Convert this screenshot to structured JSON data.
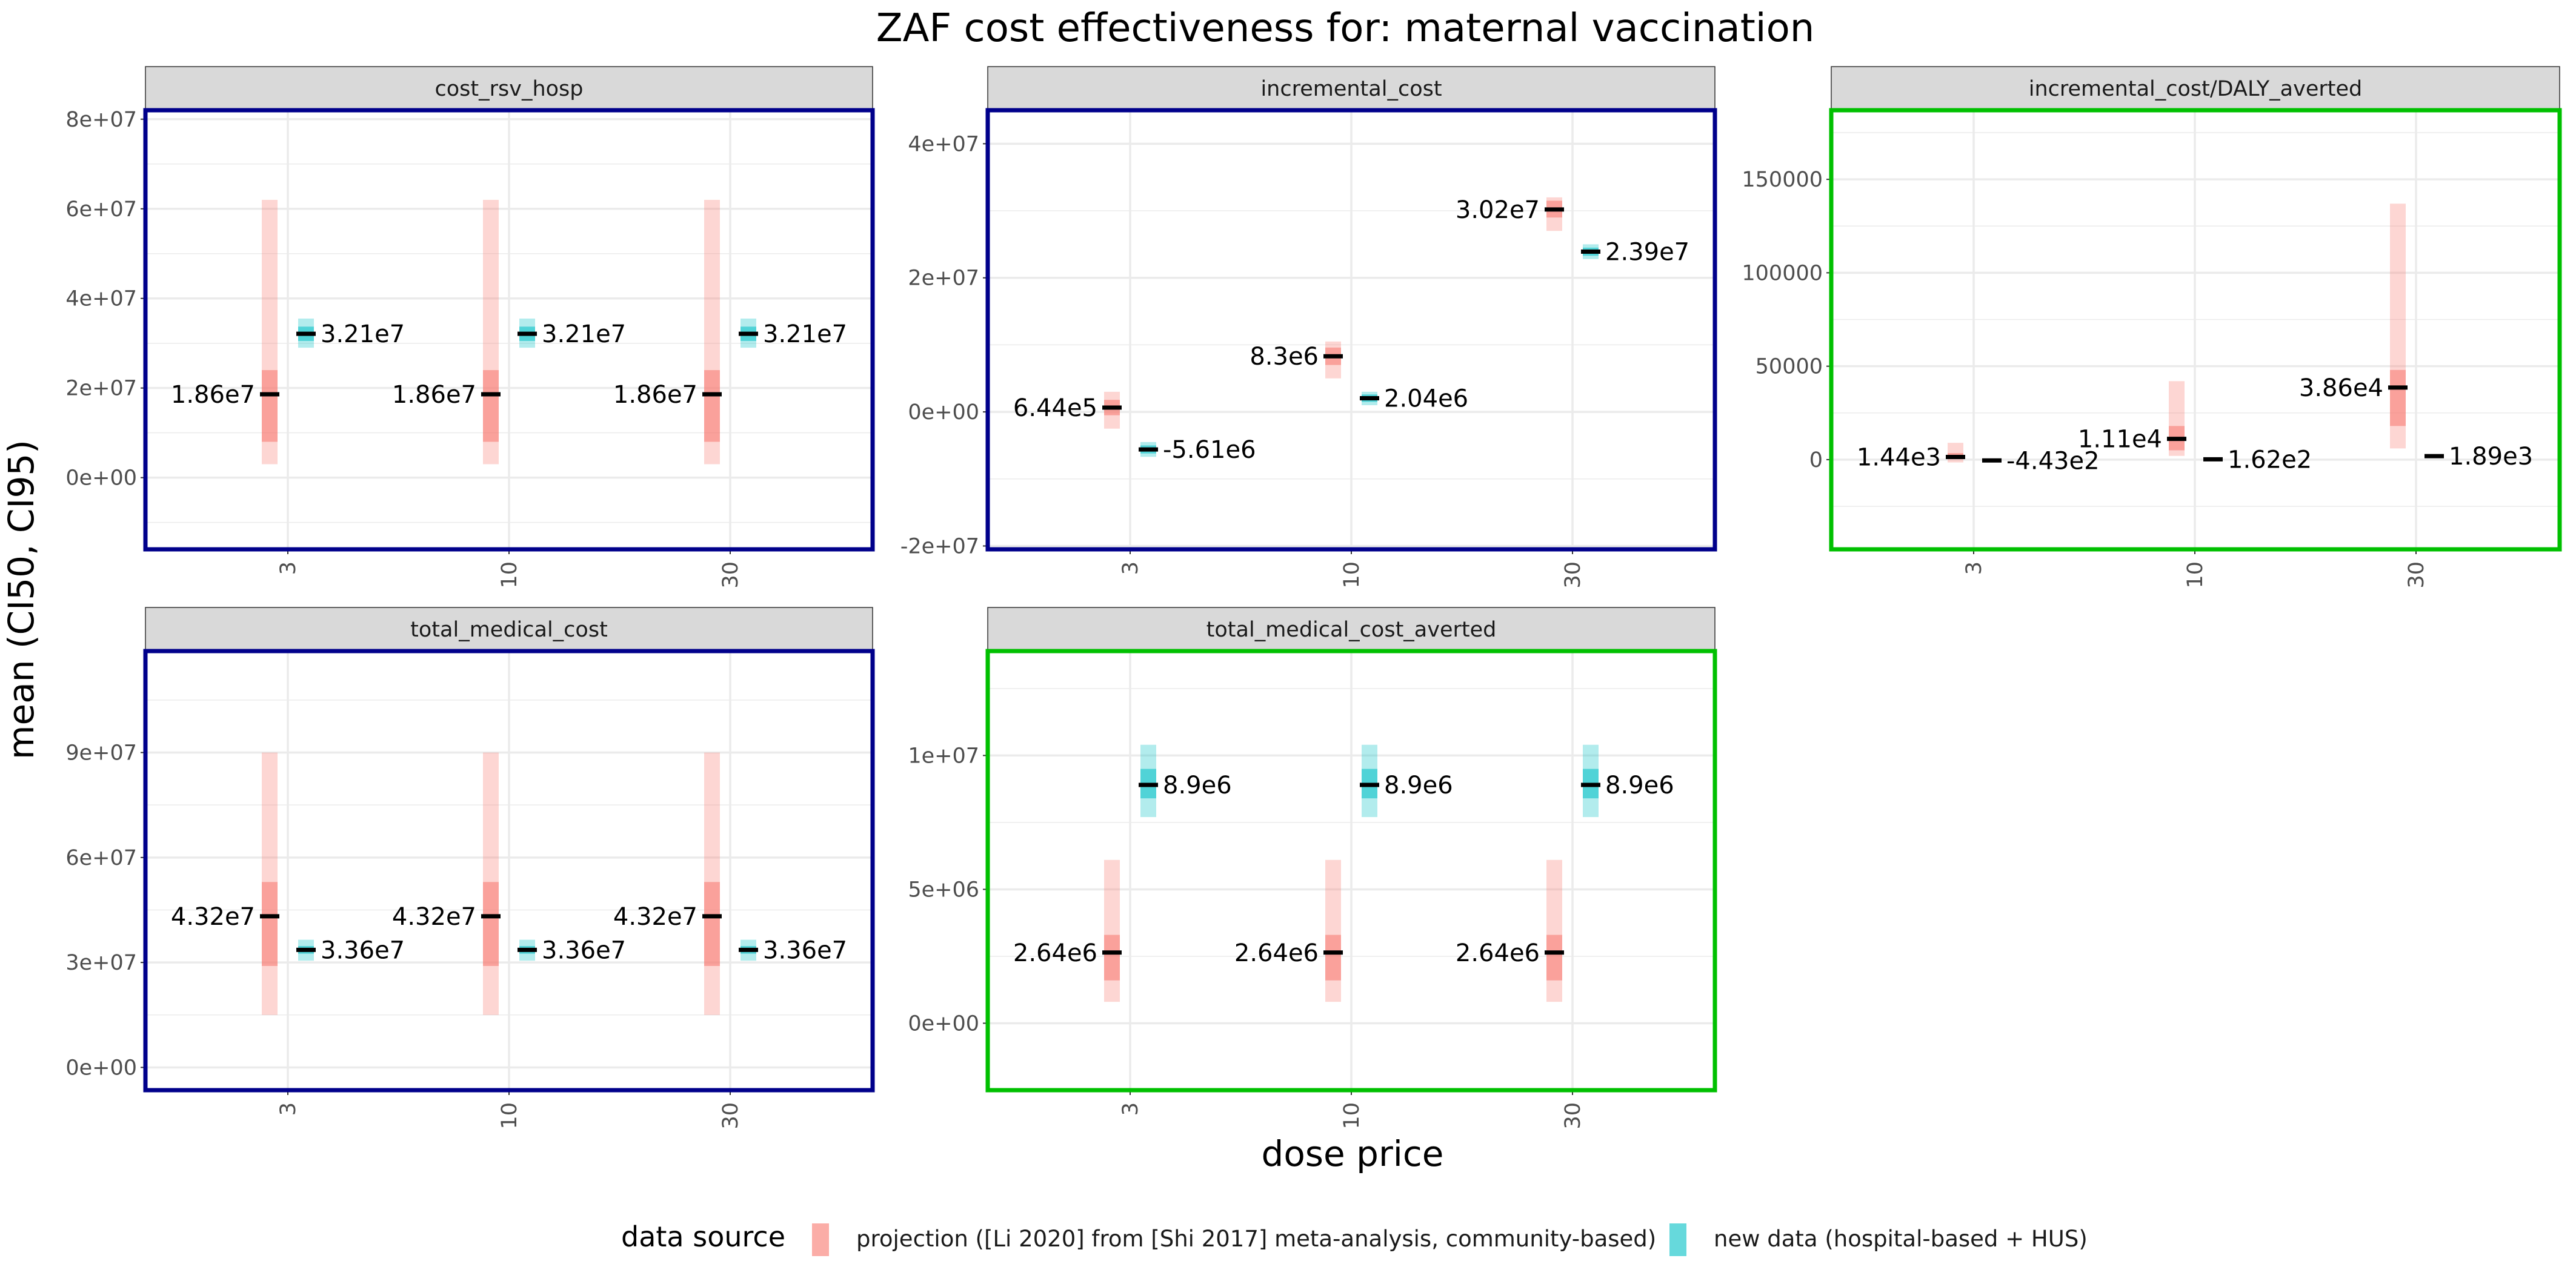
{
  "title": "ZAF cost effectiveness for: maternal vaccination",
  "xlabel": "dose price",
  "ylabel": "mean (CI50, CI95)",
  "legend": {
    "title": "data source",
    "items": [
      {
        "key": "projection",
        "label": "projection ([Li 2020] from [Shi 2017] meta-analysis, community-based)",
        "color": "#f8766d"
      },
      {
        "key": "newdata",
        "label": "new data (hospital-based + HUS)",
        "color": "#00bfc4"
      }
    ]
  },
  "colors": {
    "projection": "#f8766d",
    "newdata": "#00bfc4",
    "border_blue": "#00008b",
    "border_green": "#00c000",
    "strip_bg": "#d9d9d9",
    "grid": "#ebebeb"
  },
  "chart_data": [
    {
      "type": "crossbar",
      "facet": "cost_rsv_hosp",
      "border": "blue",
      "categories": [
        "3",
        "10",
        "30"
      ],
      "ylim": [
        -16000000,
        82000000
      ],
      "yticks": [
        0,
        20000000,
        40000000,
        60000000,
        80000000
      ],
      "ytick_labels": [
        "0e+00",
        "2e+07",
        "4e+07",
        "6e+07",
        "8e+07"
      ],
      "series": [
        {
          "source": "projection",
          "mean": [
            18600000,
            18600000,
            18600000
          ],
          "ci50": [
            [
              8000000,
              24000000
            ],
            [
              8000000,
              24000000
            ],
            [
              8000000,
              24000000
            ]
          ],
          "ci95": [
            [
              3000000,
              62000000
            ],
            [
              3000000,
              62000000
            ],
            [
              3000000,
              62000000
            ]
          ],
          "labels": [
            "1.86e7",
            "1.86e7",
            "1.86e7"
          ]
        },
        {
          "source": "newdata",
          "mean": [
            32100000,
            32100000,
            32100000
          ],
          "ci50": [
            [
              30500000,
              33700000
            ],
            [
              30500000,
              33700000
            ],
            [
              30500000,
              33700000
            ]
          ],
          "ci95": [
            [
              29000000,
              35500000
            ],
            [
              29000000,
              35500000
            ],
            [
              29000000,
              35500000
            ]
          ],
          "labels": [
            "3.21e7",
            "3.21e7",
            "3.21e7"
          ]
        }
      ]
    },
    {
      "type": "crossbar",
      "facet": "incremental_cost",
      "border": "blue",
      "categories": [
        "3",
        "10",
        "30"
      ],
      "ylim": [
        -20500000,
        45000000
      ],
      "yticks": [
        -20000000,
        0,
        20000000,
        40000000
      ],
      "ytick_labels": [
        "-2e+07",
        "0e+00",
        "2e+07",
        "4e+07"
      ],
      "series": [
        {
          "source": "projection",
          "mean": [
            644000,
            8300000,
            30200000
          ],
          "ci50": [
            [
              -500000,
              1800000
            ],
            [
              7000000,
              9600000
            ],
            [
              29000000,
              31500000
            ]
          ],
          "ci95": [
            [
              -2500000,
              3000000
            ],
            [
              5000000,
              10500000
            ],
            [
              27000000,
              32000000
            ]
          ],
          "labels": [
            "6.44e5",
            "8.3e6",
            "3.02e7"
          ]
        },
        {
          "source": "newdata",
          "mean": [
            -5610000,
            2040000,
            23900000
          ],
          "ci50": [
            [
              -6200000,
              -5000000
            ],
            [
              1500000,
              2600000
            ],
            [
              23300000,
              24500000
            ]
          ],
          "ci95": [
            [
              -6700000,
              -4500000
            ],
            [
              1000000,
              3000000
            ],
            [
              22800000,
              25000000
            ]
          ],
          "labels": [
            "-5.61e6",
            "2.04e6",
            "2.39e7"
          ]
        }
      ]
    },
    {
      "type": "crossbar",
      "facet": "incremental_cost/DALY_averted",
      "border": "green",
      "categories": [
        "3",
        "10",
        "30"
      ],
      "ylim": [
        -48000000,
        187000000
      ],
      "ylim_note": "units",
      "yticks": [
        0,
        50000,
        100000,
        150000
      ],
      "ytick_labels": [
        "0",
        "50000",
        "100000",
        "150000"
      ],
      "series": [
        {
          "source": "projection",
          "mean": [
            1440,
            11100,
            38600
          ],
          "ci50": [
            [
              500,
              3500
            ],
            [
              5000,
              18000
            ],
            [
              18000,
              48000
            ]
          ],
          "ci95": [
            [
              -1500,
              9000
            ],
            [
              2000,
              42000
            ],
            [
              6000,
              137000
            ]
          ],
          "labels": [
            "1.44e3",
            "1.11e4",
            "3.86e4"
          ]
        },
        {
          "source": "newdata",
          "mean": [
            -443,
            162,
            1890
          ],
          "ci50": [
            [
              -450,
              -435
            ],
            [
              150,
              175
            ],
            [
              1860,
              1920
            ]
          ],
          "ci95": [
            [
              -460,
              -425
            ],
            [
              140,
              185
            ],
            [
              1830,
              1950
            ]
          ],
          "labels": [
            "-4.43e2",
            "1.62e2",
            "1.89e3"
          ]
        }
      ]
    },
    {
      "type": "crossbar",
      "facet": "total_medical_cost",
      "border": "blue",
      "categories": [
        "3",
        "10",
        "30"
      ],
      "ylim": [
        -6500000,
        119000000
      ],
      "yticks": [
        0,
        30000000,
        60000000,
        90000000
      ],
      "ytick_labels": [
        "0e+00",
        "3e+07",
        "6e+07",
        "9e+07"
      ],
      "series": [
        {
          "source": "projection",
          "mean": [
            43200000,
            43200000,
            43200000
          ],
          "ci50": [
            [
              29000000,
              53000000
            ],
            [
              29000000,
              53000000
            ],
            [
              29000000,
              53000000
            ]
          ],
          "ci95": [
            [
              15000000,
              90000000
            ],
            [
              15000000,
              90000000
            ],
            [
              15000000,
              90000000
            ]
          ],
          "labels": [
            "4.32e7",
            "4.32e7",
            "4.32e7"
          ]
        },
        {
          "source": "newdata",
          "mean": [
            33600000,
            33600000,
            33600000
          ],
          "ci50": [
            [
              32500000,
              34700000
            ],
            [
              32500000,
              34700000
            ],
            [
              32500000,
              34700000
            ]
          ],
          "ci95": [
            [
              30500000,
              36500000
            ],
            [
              30500000,
              36500000
            ],
            [
              30500000,
              36500000
            ]
          ],
          "labels": [
            "3.36e7",
            "3.36e7",
            "3.36e7"
          ]
        }
      ]
    },
    {
      "type": "crossbar",
      "facet": "total_medical_cost_averted",
      "border": "green",
      "categories": [
        "3",
        "10",
        "30"
      ],
      "ylim": [
        -2500000,
        13900000
      ],
      "yticks": [
        0,
        5000000,
        10000000
      ],
      "ytick_labels": [
        "0e+00",
        "5e+06",
        "1e+07"
      ],
      "series": [
        {
          "source": "projection",
          "mean": [
            2640000,
            2640000,
            2640000
          ],
          "ci50": [
            [
              1600000,
              3300000
            ],
            [
              1600000,
              3300000
            ],
            [
              1600000,
              3300000
            ]
          ],
          "ci95": [
            [
              800000,
              6100000
            ],
            [
              800000,
              6100000
            ],
            [
              800000,
              6100000
            ]
          ],
          "labels": [
            "2.64e6",
            "2.64e6",
            "2.64e6"
          ]
        },
        {
          "source": "newdata",
          "mean": [
            8900000,
            8900000,
            8900000
          ],
          "ci50": [
            [
              8400000,
              9500000
            ],
            [
              8400000,
              9500000
            ],
            [
              8400000,
              9500000
            ]
          ],
          "ci95": [
            [
              7700000,
              10400000
            ],
            [
              7700000,
              10400000
            ],
            [
              7700000,
              10400000
            ]
          ],
          "labels": [
            "8.9e6",
            "8.9e6",
            "8.9e6"
          ]
        }
      ]
    }
  ]
}
